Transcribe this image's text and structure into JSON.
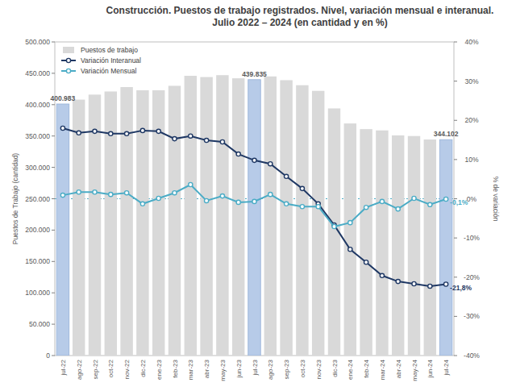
{
  "chart_data": {
    "type": "bar",
    "title": "Construcción. Puestos de trabajo registrados. Nivel, variación mensual e interanual.",
    "subtitle": "Julio 2022 – 2024 (en cantidad y en %)",
    "y_label": "Puestos de Trabajo (cantidad)",
    "y2_label": "% de variación",
    "categories": [
      "jul-22",
      "ago-22",
      "sep-22",
      "oct-22",
      "nov-22",
      "dic-22",
      "ene-23",
      "feb-23",
      "mar-23",
      "abr-23",
      "may-23",
      "jun-23",
      "jul-23",
      "ago-23",
      "sep-23",
      "oct-23",
      "nov-23",
      "dic-23",
      "ene-24",
      "feb-24",
      "mar-24",
      "abr-24",
      "may-24",
      "jun-24",
      "jul-24"
    ],
    "series": [
      {
        "name": "Puestos de trabajo",
        "type": "bar",
        "color": "#d9d9d9",
        "colors": [
          "#b7cbe8",
          "#d9d9d9",
          "#d9d9d9",
          "#d9d9d9",
          "#d9d9d9",
          "#d9d9d9",
          "#d9d9d9",
          "#d9d9d9",
          "#d9d9d9",
          "#d9d9d9",
          "#d9d9d9",
          "#d9d9d9",
          "#b7cbe8",
          "#d9d9d9",
          "#d9d9d9",
          "#d9d9d9",
          "#d9d9d9",
          "#d9d9d9",
          "#d9d9d9",
          "#d9d9d9",
          "#d9d9d9",
          "#d9d9d9",
          "#d9d9d9",
          "#d9d9d9",
          "#b7cbe8"
        ],
        "values": [
          400983,
          408000,
          416000,
          421000,
          428000,
          423000,
          423000,
          430000,
          446000,
          444000,
          447000,
          442000,
          439835,
          445000,
          439000,
          431000,
          422000,
          394000,
          370000,
          361000,
          359000,
          351000,
          350000,
          344500,
          344102
        ],
        "value_labels": [
          "400.983",
          null,
          null,
          null,
          null,
          null,
          null,
          null,
          null,
          null,
          null,
          null,
          "439.835",
          null,
          null,
          null,
          null,
          null,
          null,
          null,
          null,
          null,
          null,
          null,
          "344.102"
        ]
      },
      {
        "name": "Variación Interanual",
        "type": "line",
        "axis": "y2",
        "color": "#1f3864",
        "marker": "circle",
        "line_style": "solid",
        "values": [
          18.0,
          16.8,
          17.2,
          16.6,
          16.6,
          17.4,
          17.2,
          15.3,
          16.0,
          14.9,
          14.5,
          11.4,
          9.8,
          8.9,
          5.7,
          2.6,
          -1.3,
          -6.7,
          -12.9,
          -16.2,
          -19.6,
          -21.1,
          -21.7,
          -22.3,
          -21.8
        ],
        "value_labels": [
          null,
          null,
          null,
          null,
          null,
          null,
          null,
          null,
          null,
          null,
          null,
          null,
          null,
          null,
          null,
          null,
          null,
          null,
          null,
          null,
          null,
          null,
          null,
          null,
          "-21,8%"
        ]
      },
      {
        "name": "Variación Mensual",
        "type": "line",
        "axis": "y2",
        "color": "#4bacc6",
        "marker": "circle",
        "line_style": "solid",
        "values": [
          0.9,
          1.7,
          1.7,
          1.1,
          1.5,
          -1.3,
          0.1,
          1.5,
          3.6,
          -0.5,
          0.7,
          -0.9,
          -0.7,
          1.1,
          -1.3,
          -2.0,
          -2.0,
          -7.1,
          -6.1,
          -2.2,
          -0.7,
          -2.6,
          0.1,
          -1.5,
          -0.1
        ],
        "value_labels": [
          null,
          null,
          null,
          null,
          null,
          null,
          null,
          null,
          null,
          null,
          null,
          null,
          null,
          null,
          null,
          null,
          null,
          null,
          null,
          null,
          null,
          null,
          null,
          null,
          "-0,1%"
        ]
      }
    ],
    "ylim": [
      0,
      500000
    ],
    "yticks": [
      0,
      {
        "value": 50000,
        "label": "50.000"
      },
      {
        "value": 100000,
        "label": "100.000"
      },
      {
        "value": 150000,
        "label": "150.000"
      },
      {
        "value": 200000,
        "label": "200.000"
      },
      {
        "value": 250000,
        "label": "250.000"
      },
      {
        "value": 300000,
        "label": "300.000"
      },
      {
        "value": 350000,
        "label": "350.000"
      },
      {
        "value": 400000,
        "label": "400.000"
      },
      {
        "value": 450000,
        "label": "450.000"
      },
      {
        "value": 500000,
        "label": "500.000"
      }
    ],
    "y2lim": [
      -40,
      40
    ],
    "y2ticks": [
      {
        "value": -40,
        "label": "-40%"
      },
      {
        "value": -30,
        "label": "-30%"
      },
      {
        "value": -20,
        "label": "-20%"
      },
      {
        "value": -10,
        "label": "-10%"
      },
      {
        "value": 0,
        "label": "0%"
      },
      {
        "value": 10,
        "label": "10%"
      },
      {
        "value": 20,
        "label": "20%"
      },
      {
        "value": 30,
        "label": "30%"
      },
      {
        "value": 40,
        "label": "40%"
      }
    ],
    "reference_lines": [
      {
        "axis": "y2",
        "value": 0
      }
    ],
    "grid": false,
    "legend": "upper left",
    "data_labels": true
  }
}
